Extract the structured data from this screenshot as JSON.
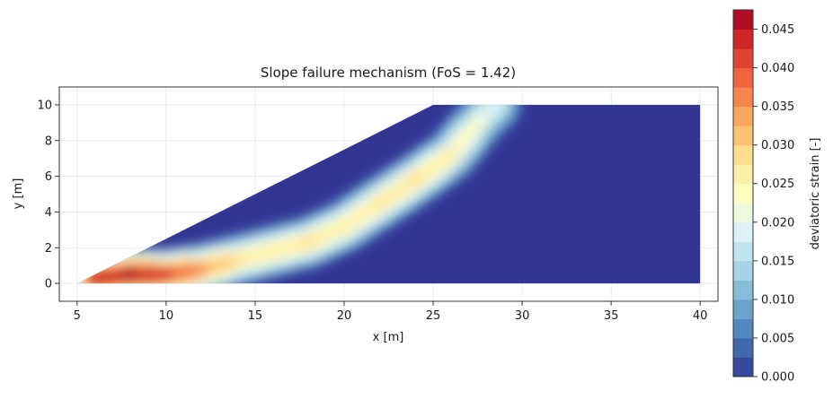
{
  "chart_data": {
    "type": "heatmap",
    "title": "Slope failure mechanism (FoS = 1.42)",
    "xlabel": "x [m]",
    "ylabel": "y [m]",
    "xlim": [
      4,
      41
    ],
    "ylim": [
      -1,
      11
    ],
    "xticks": [
      5,
      10,
      15,
      20,
      25,
      30,
      35,
      40
    ],
    "yticks": [
      0,
      2,
      4,
      6,
      8,
      10
    ],
    "grid": true,
    "geometry": {
      "slope_toe": [
        5,
        0
      ],
      "slope_crest": [
        25,
        10
      ],
      "right_extent": 40
    },
    "colorbar": {
      "label": "deviatoric strain [-]",
      "min": 0.0,
      "max": 0.0475,
      "ticks": [
        "0.000",
        "0.005",
        "0.010",
        "0.015",
        "0.020",
        "0.025",
        "0.030",
        "0.035",
        "0.040",
        "0.045"
      ],
      "tick_values": [
        0.0,
        0.005,
        0.01,
        0.015,
        0.02,
        0.025,
        0.03,
        0.035,
        0.04,
        0.045
      ],
      "levels": 19,
      "colormap": "RdYlBu_r",
      "colors": [
        "#313695",
        "#4575b4",
        "#74add1",
        "#abd9e9",
        "#e0f3f8",
        "#ffffbf",
        "#fee090",
        "#fdae61",
        "#f46d43",
        "#d73027",
        "#a50026"
      ]
    },
    "shear_band": {
      "description_points": [
        {
          "x": 6,
          "y": 0.3,
          "strain": 0.043
        },
        {
          "x": 8,
          "y": 0.5,
          "strain": 0.046
        },
        {
          "x": 10,
          "y": 0.5,
          "strain": 0.042
        },
        {
          "x": 12,
          "y": 0.8,
          "strain": 0.035
        },
        {
          "x": 14,
          "y": 1.3,
          "strain": 0.028
        },
        {
          "x": 16,
          "y": 1.8,
          "strain": 0.026
        },
        {
          "x": 18,
          "y": 2.3,
          "strain": 0.028
        },
        {
          "x": 20,
          "y": 3.2,
          "strain": 0.026
        },
        {
          "x": 22,
          "y": 4.5,
          "strain": 0.027
        },
        {
          "x": 24,
          "y": 5.8,
          "strain": 0.028
        },
        {
          "x": 26,
          "y": 7.2,
          "strain": 0.026
        },
        {
          "x": 27.5,
          "y": 9.0,
          "strain": 0.022
        },
        {
          "x": 28.5,
          "y": 10.0,
          "strain": 0.018
        }
      ]
    }
  }
}
